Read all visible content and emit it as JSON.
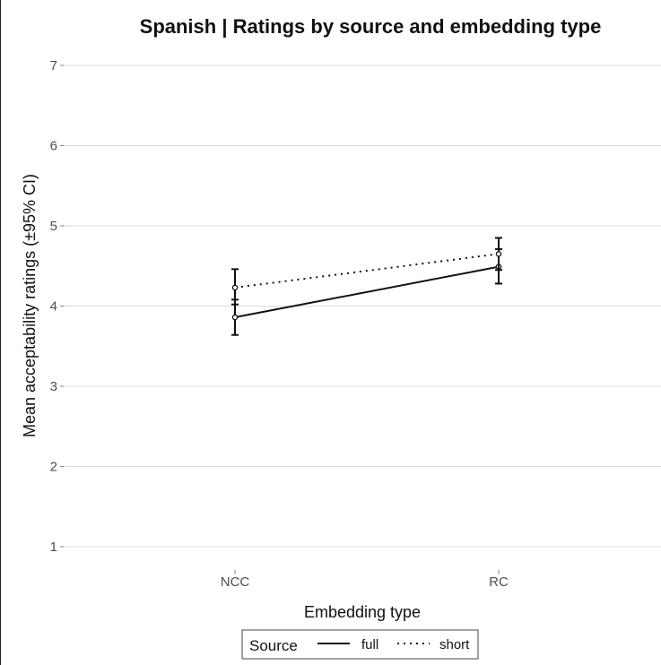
{
  "chart_data": {
    "type": "line",
    "title": "Spanish | Ratings by source and embedding type",
    "xlabel": "Embedding type",
    "ylabel": "Mean acceptability ratings (±95% CI)",
    "categories": [
      "NCC",
      "RC"
    ],
    "ylim": [
      1,
      7
    ],
    "yticks": [
      1,
      2,
      3,
      4,
      5,
      6,
      7
    ],
    "grid": true,
    "legend": {
      "title": "Source",
      "placement": "bottom",
      "entries": [
        "full",
        "short"
      ]
    },
    "series": [
      {
        "name": "full",
        "line_style": "solid",
        "values": [
          3.86,
          4.49
        ],
        "ci_lower": [
          3.64,
          4.28
        ],
        "ci_upper": [
          4.08,
          4.71
        ]
      },
      {
        "name": "short",
        "line_style": "dotted",
        "values": [
          4.23,
          4.65
        ],
        "ci_lower": [
          4.02,
          4.45
        ],
        "ci_upper": [
          4.46,
          4.85
        ]
      }
    ],
    "colors": {
      "line": "#111111",
      "grid": "#dcdcdc",
      "tick": "#4d4d4d"
    }
  }
}
